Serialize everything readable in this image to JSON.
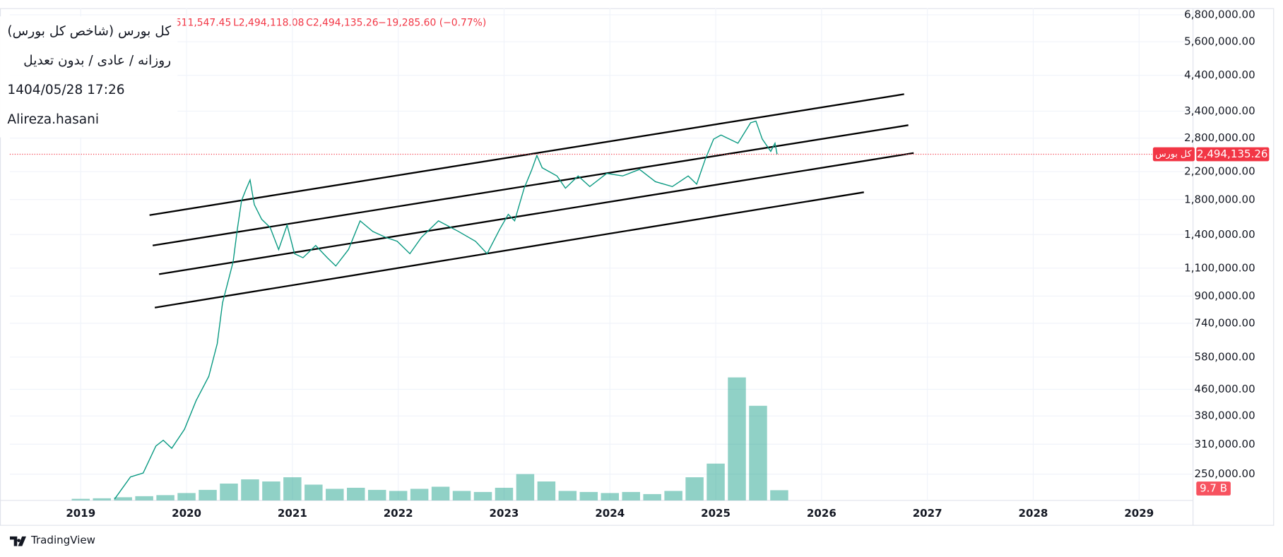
{
  "header": {
    "title": "کل بورس (شاخص کل بورس)",
    "settings": "روزانه / عادی / بدون تعدیل",
    "timestamp": "1404/05/28 17:26",
    "author": "Alireza.hasani",
    "ohlc": [
      "511,547.45",
      "L2,494,118.08",
      "C2,494,135.26",
      "−19,285.60 (−0.77%)"
    ],
    "brand": "TradingView"
  },
  "chart_data": {
    "type": "line",
    "log_scale": true,
    "grid": true,
    "series": [
      {
        "name": "کل بورس",
        "color": "#089981",
        "x": [
          2019.32,
          2019.47,
          2019.59,
          2019.71,
          2019.78,
          2019.86,
          2019.98,
          2020.09,
          2020.21,
          2020.29,
          2020.34,
          2020.39,
          2020.44,
          2020.48,
          2020.52,
          2020.56,
          2020.6,
          2020.64,
          2020.71,
          2020.79,
          2020.87,
          2020.95,
          2021.02,
          2021.1,
          2021.22,
          2021.33,
          2021.41,
          2021.53,
          2021.64,
          2021.76,
          2021.88,
          2021.99,
          2022.11,
          2022.22,
          2022.38,
          2022.57,
          2022.73,
          2022.84,
          2022.96,
          2023.04,
          2023.1,
          2023.19,
          2023.26,
          2023.31,
          2023.36,
          2023.5,
          2023.58,
          2023.7,
          2023.81,
          2023.97,
          2024.12,
          2024.28,
          2024.43,
          2024.59,
          2024.74,
          2024.82,
          2024.9,
          2024.98,
          2025.05,
          2025.21,
          2025.33,
          2025.38,
          2025.44,
          2025.52,
          2025.56,
          2025.58
        ],
        "values": [
          209000,
          245000,
          252000,
          306000,
          319000,
          301000,
          345000,
          424000,
          505000,
          639000,
          857000,
          993000,
          1151000,
          1457000,
          1789000,
          1931000,
          2073000,
          1737000,
          1562000,
          1473000,
          1257000,
          1499000,
          1220000,
          1185000,
          1294000,
          1185000,
          1117000,
          1257000,
          1545000,
          1431000,
          1373000,
          1334000,
          1220000,
          1373000,
          1545000,
          1431000,
          1334000,
          1220000,
          1457000,
          1619000,
          1545000,
          1954000,
          2223000,
          2472000,
          2264000,
          2134000,
          1954000,
          2134000,
          1977000,
          2173000,
          2134000,
          2237000,
          2048000,
          1977000,
          2134000,
          2012000,
          2400000,
          2781000,
          2864000,
          2700000,
          3129000,
          3165000,
          2781000,
          2547000,
          2700000,
          2494135.26
        ]
      }
    ],
    "price_line": {
      "value": 2494135.26,
      "label": "2,494,135.26",
      "color": "#f23645"
    },
    "volume": {
      "color": "rgba(8,153,129,0.45)",
      "ylim": [
        0,
        140
      ],
      "x": [
        2019.0,
        2019.2,
        2019.4,
        2019.6,
        2019.8,
        2020.0,
        2020.2,
        2020.4,
        2020.6,
        2020.8,
        2021.0,
        2021.2,
        2021.4,
        2021.6,
        2021.8,
        2022.0,
        2022.2,
        2022.4,
        2022.6,
        2022.8,
        2023.0,
        2023.2,
        2023.4,
        2023.6,
        2023.8,
        2024.0,
        2024.2,
        2024.4,
        2024.6,
        2024.8,
        2025.0,
        2025.2,
        2025.4,
        2025.6
      ],
      "values": [
        1.5,
        2,
        3,
        4,
        5,
        7,
        10,
        16,
        20,
        18,
        22,
        15,
        11,
        12,
        10,
        9,
        11,
        13,
        9,
        8,
        12,
        25,
        18,
        9,
        8,
        7,
        8,
        6,
        9,
        22,
        35,
        117,
        90,
        9.7
      ],
      "last": {
        "value": 9.7,
        "label": "9.7 B"
      }
    },
    "trend_lines": [
      {
        "x": [
          2019.65,
          2026.78
        ],
        "values": [
          1610000,
          3842000
        ]
      },
      {
        "x": [
          2019.68,
          2026.82
        ],
        "values": [
          1294000,
          3074000
        ]
      },
      {
        "x": [
          2019.74,
          2026.87
        ],
        "values": [
          1053000,
          2516000
        ]
      },
      {
        "x": [
          2019.7,
          2026.4
        ],
        "values": [
          828000,
          1898000
        ]
      }
    ],
    "xlim": [
      2018.33,
      2029.51
    ],
    "xticks": [
      2019,
      2020,
      2021,
      2022,
      2023,
      2024,
      2025,
      2026,
      2027,
      2028,
      2029
    ],
    "ylim": [
      207000,
      7130000
    ],
    "yticks": [
      {
        "value": 6800000,
        "label": "6,800,000.00"
      },
      {
        "value": 5600000,
        "label": "5,600,000.00"
      },
      {
        "value": 4400000,
        "label": "4,400,000.00"
      },
      {
        "value": 3400000,
        "label": "3,400,000.00"
      },
      {
        "value": 2800000,
        "label": "2,800,000.00"
      },
      {
        "value": 2200000,
        "label": "2,200,000.00"
      },
      {
        "value": 1800000,
        "label": "1,800,000.00"
      },
      {
        "value": 1400000,
        "label": "1,400,000.00"
      },
      {
        "value": 1100000,
        "label": "1,100,000.00"
      },
      {
        "value": 900000,
        "label": "900,000.00"
      },
      {
        "value": 740000,
        "label": "740,000.00"
      },
      {
        "value": 580000,
        "label": "580,000.00"
      },
      {
        "value": 460000,
        "label": "460,000.00"
      },
      {
        "value": 380000,
        "label": "380,000.00"
      },
      {
        "value": 310000,
        "label": "310,000.00"
      },
      {
        "value": 250000,
        "label": "250,000.00"
      }
    ]
  }
}
